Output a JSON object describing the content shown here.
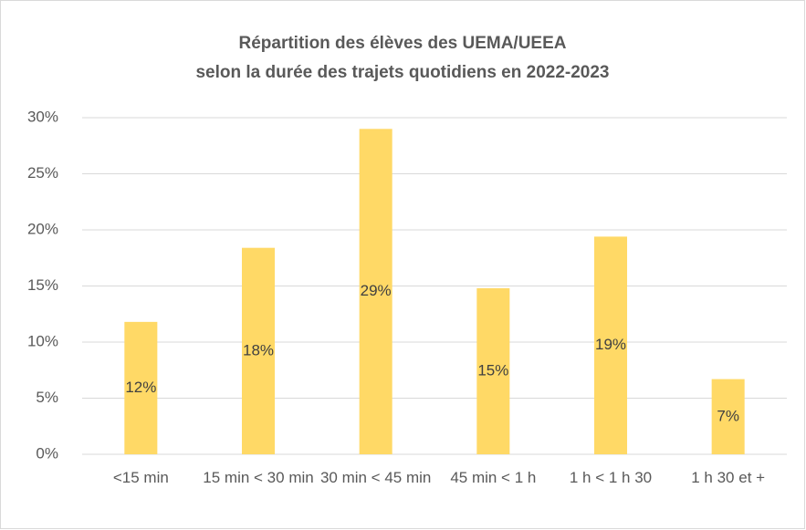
{
  "chart_data": {
    "type": "bar",
    "title": [
      "Répartition des élèves des UEMA/UEEA",
      "selon la durée des trajets quotidiens en 2022-2023"
    ],
    "categories": [
      "<15 min",
      "15 min < 30 min",
      "30 min < 45 min",
      "45 min < 1 h",
      "1 h < 1 h 30",
      "1 h 30 et +"
    ],
    "values": [
      11.8,
      18.4,
      29.0,
      14.8,
      19.4,
      6.7
    ],
    "value_labels": [
      "12%",
      "18%",
      "29%",
      "15%",
      "19%",
      "7%"
    ],
    "color": "#ffd966",
    "ylim": [
      0,
      30
    ],
    "yticks": [
      {
        "value": 0,
        "label": "0%"
      },
      {
        "value": 5,
        "label": "5%"
      },
      {
        "value": 10,
        "label": "10%"
      },
      {
        "value": 15,
        "label": "15%"
      },
      {
        "value": 20,
        "label": "20%"
      },
      {
        "value": 25,
        "label": "25%"
      },
      {
        "value": 30,
        "label": "30%"
      }
    ],
    "grid": true
  }
}
